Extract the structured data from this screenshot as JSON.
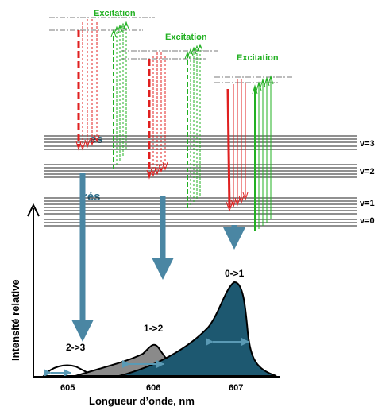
{
  "excitation_labels": [
    "Excitation",
    "Excitation",
    "Excitation"
  ],
  "level_labels": [
    "v=3",
    "v=2",
    "v=1",
    "v=0"
  ],
  "transition_labels": [
    "2->3",
    "1->2",
    "0->1"
  ],
  "x_axis": {
    "label": "Longueur d’onde, nm",
    "ticks": [
      "605",
      "606",
      "607"
    ]
  },
  "y_axis": {
    "label": "Intensité  relative"
  },
  "left_fragments": [
    "es",
    "rés"
  ],
  "colors": {
    "excitation_green": "#22b022",
    "emission_red": "#e02020",
    "arrow_blue": "#4a86a3",
    "peak_dark": "#1d5870",
    "peak_grey": "#8a8a8a",
    "width_marker": "#5a9ab5"
  },
  "peaks": [
    {
      "transition": "2->3",
      "relative_height": 0.07,
      "fill": "white"
    },
    {
      "transition": "1->2",
      "relative_height": 0.35,
      "fill": "grey"
    },
    {
      "transition": "0->1",
      "relative_height": 1.0,
      "fill": "dark-teal"
    }
  ]
}
